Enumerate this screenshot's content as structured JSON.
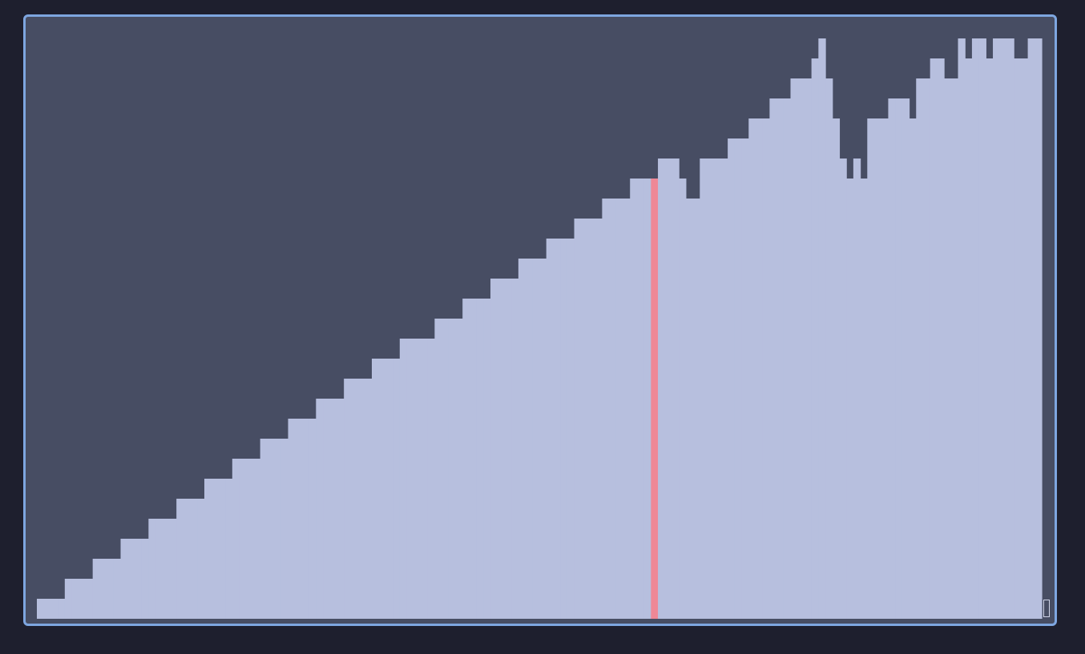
{
  "view": {
    "colors": {
      "background": "#1e1f2e",
      "panel": "#474d63",
      "border": "#7ea6e0",
      "bar": "#b7bfde",
      "highlight": "#ee8896",
      "cursor_border": "#d0d4e8"
    }
  },
  "chart_data": {
    "type": "bar",
    "values": [
      1,
      1,
      1,
      1,
      2,
      2,
      2,
      2,
      3,
      3,
      3,
      3,
      4,
      4,
      4,
      4,
      5,
      5,
      5,
      5,
      6,
      6,
      6,
      6,
      7,
      7,
      7,
      7,
      8,
      8,
      8,
      8,
      9,
      9,
      9,
      9,
      10,
      10,
      10,
      10,
      11,
      11,
      11,
      11,
      12,
      12,
      12,
      12,
      13,
      13,
      13,
      13,
      14,
      14,
      14,
      14,
      14,
      15,
      15,
      15,
      15,
      16,
      16,
      16,
      16,
      17,
      17,
      17,
      17,
      18,
      18,
      18,
      18,
      19,
      19,
      19,
      19,
      20,
      20,
      20,
      20,
      21,
      21,
      21,
      21,
      22,
      22,
      22,
      22,
      23,
      23,
      23,
      22,
      21,
      21,
      23,
      23,
      23,
      23,
      24,
      24,
      24,
      25,
      25,
      25,
      26,
      26,
      26,
      27,
      27,
      27,
      28,
      29,
      27,
      25,
      23,
      22,
      23,
      22,
      25,
      25,
      25,
      26,
      26,
      26,
      25,
      27,
      27,
      28,
      28,
      27,
      27,
      29,
      28,
      29,
      29,
      28,
      29,
      29,
      29,
      28,
      28,
      29,
      29
    ],
    "highlight_index": 88,
    "ylim": [
      0,
      30
    ],
    "grid": false,
    "legend": "none"
  }
}
